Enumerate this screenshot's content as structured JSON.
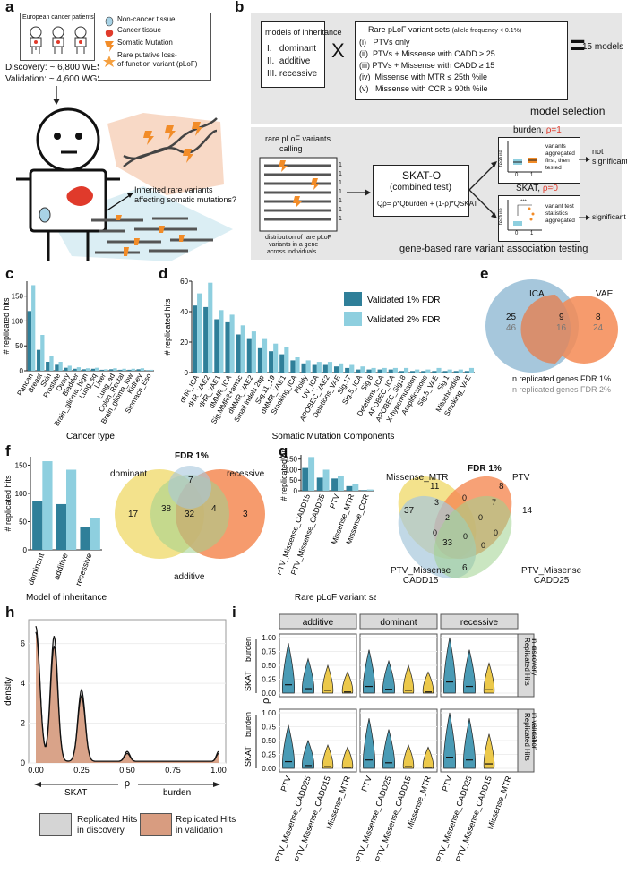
{
  "panel_letters": [
    "a",
    "b",
    "c",
    "d",
    "e",
    "f",
    "g",
    "h",
    "i"
  ],
  "panel_a": {
    "patients_label": "European cancer patients",
    "discovery": "Discovery: ~ 6,800 WES",
    "validation": "Validation: ~ 4,600 WGS",
    "legend": [
      "Non-cancer tissue",
      "Cancer tissue",
      "Somatic Mutation",
      "Rare putative loss-",
      "of-function variant (pLoF)"
    ],
    "question": [
      "Inherited rare variants",
      "affecting somatic mutations?"
    ],
    "colors": {
      "noncancer": "#a9d3e6",
      "cancer": "#e03a2b",
      "mutation": "#f28c28",
      "bg": "#f8d9c6"
    }
  },
  "panel_b": {
    "models_title": "models of inheritance",
    "models": [
      "I.   dominant",
      "II.  additive",
      "III. recessive"
    ],
    "times": "X",
    "sets_title": "Rare pLoF variant sets",
    "sets_note": "(allele frequency < 0.1%)",
    "sets": [
      "(i)   PTVs only",
      "(ii)  PTVs + Missense with CADD ≥ 25",
      "(iii) PTVs + Missense with CADD ≥ 15",
      "(iv)  Missense with MTR ≤ 25th %ile",
      "(v)   Missense with CCR ≥ 90th %ile"
    ],
    "equals": "=",
    "result": "15 models",
    "selection_label": "model selection",
    "calling_label": [
      "rare pLoF variants",
      "calling"
    ],
    "dist_label": [
      "distribution of rare pLoF",
      "variants in a gene",
      "across individuals"
    ],
    "ones": [
      "1",
      "1",
      "1",
      "1",
      "1",
      "1",
      "1"
    ],
    "skato_title": "SKAT-O",
    "skato_sub": "(combined test)",
    "skato_formula": "Qρ= ρ*Qburden + (1-ρ)*QSKAT",
    "burden_title": "burden, ",
    "burden_rho": "ρ=1",
    "burden_desc": [
      "variants",
      "aggregated",
      "first, then",
      "tested"
    ],
    "burden_result": [
      "not",
      "significant"
    ],
    "skat_title": "SKAT, ",
    "skat_rho": "ρ=0",
    "skat_desc": [
      "variant test",
      "statistics",
      "aggregated"
    ],
    "skat_result": "significant",
    "feature": "feature",
    "stars": "***",
    "x01": [
      "0",
      "1"
    ],
    "testing_label": "gene-based rare variant association testing"
  },
  "panel_c": {
    "chart_data": {
      "type": "bar",
      "ylabel": "# replicated hits",
      "xlabel": "Cancer type",
      "ylim": [
        0,
        180
      ],
      "yticks": [
        0,
        50,
        100,
        150
      ],
      "categories": [
        "Pancan",
        "Breast",
        "Skin",
        "Prostate",
        "Ovary",
        "Bladder",
        "Brain_glioma_high",
        "Lung_sq",
        "Liver",
        "Lung_ad",
        "Colon_Rectal",
        "Brain_glioma_low",
        "Kidney",
        "Stomach_Eso"
      ],
      "series": [
        {
          "name": "Validated 1% FDR",
          "values": [
            120,
            42,
            18,
            12,
            6,
            4,
            3,
            4,
            2,
            3,
            2,
            2,
            3,
            1
          ]
        },
        {
          "name": "Validated 2% FDR",
          "values": [
            172,
            72,
            30,
            18,
            10,
            7,
            5,
            6,
            3,
            5,
            4,
            4,
            5,
            2
          ]
        }
      ]
    }
  },
  "panel_d": {
    "chart_data": {
      "type": "bar",
      "ylabel": "# replicated hits",
      "xlabel": "Somatic Mutation Components",
      "ylim": [
        0,
        60
      ],
      "yticks": [
        0,
        20,
        40,
        60
      ],
      "categories": [
        "dHR_ICA",
        "dHR_VAE2",
        "dHR_VAE1",
        "dMMR_ICA",
        "Sig.MMR2+amsc",
        "dMMR_VAE2",
        "Small indels 2bp",
        "Sig.11_19",
        "dMMR_VAE1",
        "Smoking_ICA",
        "Ploidy",
        "UV_ICA",
        "APOBEC_VAE2",
        "Deletions_VAE",
        "Sig.17",
        "Sig.5_ICA",
        "Sig.8",
        "Deletions_ICA",
        "APOBEC_ICA",
        "APOBEC_Sig18",
        "X-hypermutation",
        "Amplifications",
        "Sig.5_VAE",
        "Sig.1",
        "Mitochondria",
        "Smoking_VAE"
      ],
      "series": [
        {
          "name": "Validated 1% FDR",
          "values": [
            44,
            43,
            35,
            33,
            25,
            22,
            16,
            14,
            12,
            8,
            6,
            5,
            5,
            4,
            3,
            2,
            2,
            2,
            2,
            1,
            1,
            1,
            1,
            1,
            1,
            1
          ]
        },
        {
          "name": "Validated 2% FDR",
          "values": [
            52,
            59,
            41,
            38,
            31,
            27,
            22,
            19,
            17,
            10,
            8,
            7,
            7,
            6,
            5,
            4,
            3,
            3,
            3,
            3,
            2,
            2,
            3,
            2,
            2,
            3
          ]
        }
      ],
      "legend": [
        "Validated 1% FDR",
        "Validated 2% FDR"
      ]
    }
  },
  "panel_e": {
    "labels": [
      "ICA",
      "VAE"
    ],
    "ica_only": [
      "25",
      "46"
    ],
    "both": [
      "9",
      "16"
    ],
    "vae_only": [
      "8",
      "24"
    ],
    "caption1": "n replicated genes FDR 1%",
    "caption2": "n replicated genes FDR 2%"
  },
  "panel_f": {
    "chart_data": {
      "type": "bar",
      "ylabel": "# replicated hits",
      "xlabel": "Model of inheritance",
      "ylim": [
        0,
        165
      ],
      "yticks": [
        0,
        50,
        100,
        150
      ],
      "categories": [
        "dominant",
        "additive",
        "recessive"
      ],
      "series": [
        {
          "name": "Validated 1% FDR",
          "values": [
            87,
            81,
            40
          ]
        },
        {
          "name": "Validated 2% FDR",
          "values": [
            157,
            142,
            57
          ]
        }
      ]
    },
    "venn_title": "FDR 1%",
    "venn_labels": [
      "dominant",
      "recessive",
      "additive"
    ],
    "venn_values": [
      "17",
      "7",
      "38",
      "32",
      "4",
      "3"
    ]
  },
  "panel_g": {
    "chart_data": {
      "type": "bar",
      "ylabel": "# replicated hits",
      "xlabel": "Rare pLoF variant set",
      "ylim": [
        0,
        170
      ],
      "yticks": [
        0,
        50,
        100,
        150
      ],
      "categories": [
        "PTV_Missense_CADD15",
        "PTV_Missense_CADD25",
        "PTV",
        "Missense_MTR",
        "Missense_CCR"
      ],
      "series": [
        {
          "name": "Validated 1% FDR",
          "values": [
            108,
            62,
            58,
            22,
            3
          ]
        },
        {
          "name": "Validated 2% FDR",
          "values": [
            160,
            100,
            68,
            33,
            6
          ]
        }
      ]
    },
    "venn_title": "FDR 1%",
    "venn_labels": [
      "Missense_MTR",
      "PTV",
      "PTV_Missense\nCADD15",
      "PTV_Missense\nCADD25"
    ],
    "venn_values": [
      "37",
      "11",
      "8",
      "14",
      "3",
      "0",
      "7",
      "2",
      "0",
      "0",
      "0",
      "33",
      "6",
      "0",
      "0"
    ]
  },
  "panel_h": {
    "chart_data": {
      "type": "area",
      "xlabel": "ρ",
      "ylabel": "density",
      "xlim": [
        0,
        1
      ],
      "ylim": [
        0,
        7.2
      ],
      "xticks": [
        "0.00",
        "0.25",
        "0.50",
        "0.75",
        "1.00"
      ],
      "yticks": [
        "0",
        "2",
        "4",
        "6"
      ],
      "peaks": [
        0.0,
        0.1,
        0.25,
        0.5,
        1.0
      ],
      "series": [
        {
          "name": "Replicated Hits in discovery",
          "peak_heights": [
            6.8,
            6.3,
            3.6,
            0.5,
            0.5
          ]
        },
        {
          "name": "Replicated Hits in validation",
          "peak_heights": [
            6.5,
            5.8,
            3.3,
            0.4,
            0.4
          ]
        }
      ],
      "legend": [
        "Replicated Hits",
        "in discovery",
        "Replicated Hits",
        "in validation"
      ]
    },
    "arrow_left": "SKAT",
    "arrow_right": "burden"
  },
  "panel_i": {
    "chart_data": {
      "type": "violin",
      "facets_cols": [
        "additive",
        "dominant",
        "recessive"
      ],
      "facets_rows": [
        "Replicated Hits in discovery",
        "Replicated Hits in validation"
      ],
      "row_titles": [
        [
          "Replicated Hits",
          "in discovery"
        ],
        [
          "Replicated Hits",
          "in validation"
        ]
      ],
      "ylabel": "ρ",
      "yticks": [
        "0.00",
        "0.25",
        "0.50",
        "0.75",
        "1.00"
      ],
      "arrows": [
        "SKAT",
        "burden"
      ],
      "categories": [
        "PTV",
        "PTV_Missense_CADD25",
        "PTV_Missense_CADD15",
        "Missense_MTR"
      ],
      "medians": {
        "discovery": {
          "additive": [
            0.15,
            0.08,
            0.05,
            0.02
          ],
          "dominant": [
            0.12,
            0.07,
            0.05,
            0.02
          ],
          "recessive": [
            0.2,
            0.12,
            0.06,
            null
          ]
        },
        "validation": {
          "additive": [
            0.12,
            0.05,
            0.03,
            0.02
          ],
          "dominant": [
            0.15,
            0.1,
            0.03,
            0.02
          ],
          "recessive": [
            0.2,
            0.15,
            0.08,
            null
          ]
        }
      },
      "colors": [
        "#4a9bb5",
        "#4a9bb5",
        "#ecc94b",
        "#ecc94b"
      ]
    }
  },
  "colors": {
    "dark": "#2f7f99",
    "light": "#8ecfdf",
    "peach": "#f3a07e",
    "blue_venn": "#a6c7dc",
    "yellow": "#f3e28c",
    "green": "#9fd18e",
    "orange": "#f58a54",
    "teal": "#4a9bb5"
  }
}
